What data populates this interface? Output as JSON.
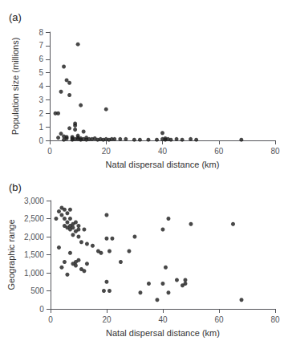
{
  "chart_data": [
    {
      "type": "scatter",
      "title": "(a)",
      "xlabel": "Natal dispersal distance (km)",
      "ylabel": "Population size (millions)",
      "xlim": [
        0,
        80
      ],
      "ylim": [
        0,
        8
      ],
      "xticks": [
        0,
        20,
        40,
        60,
        80
      ],
      "yticks": [
        0,
        1,
        2,
        3,
        4,
        5,
        6,
        7,
        8
      ],
      "grid": false,
      "color": "#1a1a1a",
      "x": [
        2,
        3,
        3,
        4,
        4,
        5,
        5,
        5,
        6,
        6,
        6,
        7,
        7,
        7,
        8,
        8,
        8,
        9,
        9,
        9,
        9,
        10,
        10,
        10,
        10,
        11,
        11,
        11,
        12,
        12,
        13,
        13,
        14,
        15,
        16,
        17,
        18,
        19,
        20,
        20,
        21,
        22,
        23,
        25,
        27,
        30,
        32,
        35,
        38,
        40,
        40,
        41,
        41,
        42,
        43,
        45,
        47,
        50,
        52,
        68
      ],
      "values": [
        2.0,
        0.2,
        2.0,
        3.6,
        0.5,
        5.45,
        0.3,
        0.05,
        4.45,
        0.25,
        0.15,
        4.25,
        3.35,
        0.9,
        0.25,
        0.15,
        0.05,
        1.25,
        1.1,
        0.8,
        0.1,
        7.1,
        0.35,
        0.2,
        0.1,
        2.6,
        0.15,
        0.05,
        0.65,
        0.1,
        0.2,
        0.05,
        0.1,
        0.1,
        0.15,
        0.05,
        0.1,
        0.05,
        2.3,
        0.1,
        0.05,
        0.1,
        0.1,
        0.1,
        0.1,
        0.05,
        0.05,
        0.05,
        0.05,
        0.55,
        0.1,
        0.15,
        0.05,
        0.1,
        0.05,
        0.1,
        0.05,
        0.1,
        0.05,
        0.05
      ]
    },
    {
      "type": "scatter",
      "title": "(b)",
      "xlabel": "Natal dispersal distance (km)",
      "ylabel": "Geographic range",
      "xlim": [
        0,
        80
      ],
      "ylim": [
        0,
        3000
      ],
      "xticks": [
        0,
        20,
        40,
        60,
        80
      ],
      "yticks": [
        0,
        500,
        1000,
        1500,
        2000,
        2500,
        3000
      ],
      "grid": false,
      "color": "#1a1a1a",
      "x": [
        2,
        3,
        3,
        4,
        4,
        4,
        5,
        5,
        5,
        5,
        6,
        6,
        6,
        6,
        7,
        7,
        7,
        7,
        7,
        8,
        8,
        8,
        8,
        9,
        9,
        9,
        9,
        10,
        10,
        10,
        10,
        11,
        11,
        12,
        12,
        13,
        13,
        15,
        17,
        18,
        19,
        20,
        20,
        20,
        21,
        21,
        22,
        25,
        28,
        30,
        32,
        35,
        38,
        40,
        40,
        41,
        42,
        42,
        45,
        47,
        48,
        48,
        50,
        65,
        68
      ],
      "values": [
        2500,
        2700,
        1700,
        2800,
        2600,
        1150,
        2750,
        2500,
        2300,
        1300,
        2650,
        2400,
        2250,
        950,
        2750,
        2500,
        2300,
        2200,
        1550,
        2350,
        2250,
        2050,
        1250,
        2400,
        2150,
        1300,
        1200,
        2300,
        2200,
        2000,
        1350,
        1850,
        1100,
        2200,
        1050,
        1800,
        1250,
        1750,
        1600,
        1550,
        500,
        2600,
        1950,
        750,
        1600,
        500,
        1950,
        1300,
        1600,
        2000,
        450,
        700,
        250,
        2200,
        700,
        1150,
        2500,
        450,
        800,
        650,
        800,
        700,
        2350,
        2350,
        250
      ]
    }
  ]
}
